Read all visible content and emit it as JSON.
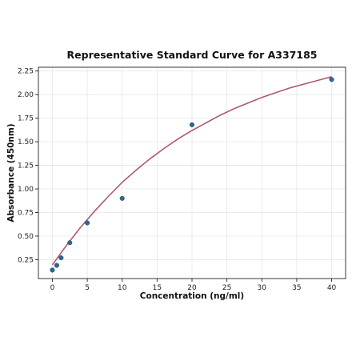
{
  "chart_data": {
    "type": "scatter",
    "title": "Representative Standard Curve for A337185",
    "xlabel": "Concentration (ng/ml)",
    "ylabel": "Absorbance (450nm)",
    "xlim": [
      -2,
      42
    ],
    "ylim": [
      0.05,
      2.29
    ],
    "xticks": [
      0,
      5,
      10,
      15,
      20,
      25,
      30,
      35,
      40
    ],
    "yticks": [
      0.25,
      0.5,
      0.75,
      1.0,
      1.25,
      1.5,
      1.75,
      2.0,
      2.25
    ],
    "xtick_labels": [
      "0",
      "5",
      "10",
      "15",
      "20",
      "25",
      "30",
      "35",
      "40"
    ],
    "ytick_labels": [
      "0.25",
      "0.50",
      "0.75",
      "1.00",
      "1.25",
      "1.50",
      "1.75",
      "2.00",
      "2.25"
    ],
    "grid": true,
    "series": [
      {
        "type": "scatter",
        "x": [
          0,
          0.625,
          1.25,
          2.5,
          5,
          10,
          20,
          40
        ],
        "y": [
          0.14,
          0.19,
          0.27,
          0.43,
          0.64,
          0.9,
          1.68,
          2.16
        ],
        "color": "#2f6690"
      },
      {
        "type": "line",
        "x": [
          0,
          2,
          4,
          6,
          8,
          10,
          12,
          14,
          16,
          18,
          20,
          22,
          24,
          26,
          28,
          30,
          32,
          34,
          36,
          38,
          40
        ],
        "y": [
          0.195,
          0.4,
          0.59,
          0.76,
          0.92,
          1.07,
          1.2,
          1.32,
          1.43,
          1.53,
          1.62,
          1.7,
          1.78,
          1.85,
          1.91,
          1.97,
          2.02,
          2.07,
          2.11,
          2.15,
          2.19
        ],
        "color": "#b05a6e"
      }
    ]
  }
}
